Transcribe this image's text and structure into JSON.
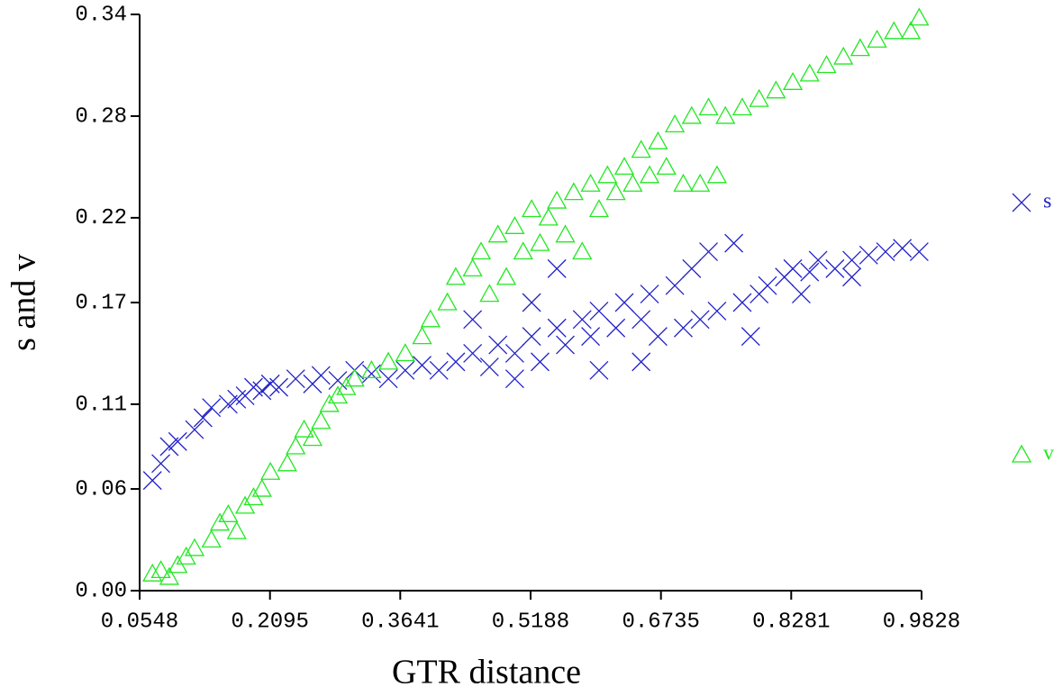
{
  "chart_data": {
    "type": "scatter",
    "x_label": "GTR distance",
    "y_label": "s and v",
    "xlim": [
      0.0548,
      0.9828
    ],
    "xticks": [
      0.0548,
      0.2095,
      0.3641,
      0.5188,
      0.6735,
      0.8281,
      0.9828
    ],
    "ylim": [
      0,
      0.34
    ],
    "yticks": [
      {
        "value": 0,
        "label": "0.00"
      },
      0.06,
      0.11,
      0.17,
      0.22,
      0.28,
      0.34
    ],
    "legend": "right",
    "series": [
      {
        "name": "s",
        "color": "#2222c8",
        "marker": "x",
        "x": [
          0.07,
          0.08,
          0.09,
          0.1,
          0.12,
          0.13,
          0.14,
          0.16,
          0.17,
          0.18,
          0.19,
          0.2,
          0.21,
          0.22,
          0.24,
          0.26,
          0.27,
          0.29,
          0.31,
          0.33,
          0.35,
          0.37,
          0.39,
          0.41,
          0.43,
          0.45,
          0.47,
          0.48,
          0.5,
          0.52,
          0.53,
          0.55,
          0.56,
          0.58,
          0.59,
          0.6,
          0.62,
          0.63,
          0.65,
          0.66,
          0.67,
          0.69,
          0.7,
          0.71,
          0.72,
          0.73,
          0.74,
          0.76,
          0.77,
          0.79,
          0.8,
          0.82,
          0.83,
          0.85,
          0.86,
          0.88,
          0.9,
          0.92,
          0.94,
          0.96,
          0.98,
          0.5,
          0.6,
          0.55,
          0.52,
          0.45,
          0.65,
          0.78,
          0.84,
          0.9
        ],
        "values": [
          0.065,
          0.075,
          0.085,
          0.088,
          0.095,
          0.102,
          0.108,
          0.11,
          0.113,
          0.115,
          0.12,
          0.118,
          0.122,
          0.12,
          0.125,
          0.122,
          0.127,
          0.124,
          0.13,
          0.128,
          0.125,
          0.13,
          0.133,
          0.13,
          0.135,
          0.14,
          0.132,
          0.145,
          0.14,
          0.15,
          0.135,
          0.155,
          0.145,
          0.16,
          0.15,
          0.165,
          0.155,
          0.17,
          0.16,
          0.175,
          0.15,
          0.18,
          0.155,
          0.19,
          0.16,
          0.2,
          0.165,
          0.205,
          0.17,
          0.175,
          0.18,
          0.185,
          0.19,
          0.188,
          0.195,
          0.19,
          0.195,
          0.198,
          0.2,
          0.202,
          0.2,
          0.125,
          0.13,
          0.19,
          0.17,
          0.16,
          0.135,
          0.15,
          0.175,
          0.185
        ]
      },
      {
        "name": "v",
        "color": "#22e822",
        "marker": "triangle",
        "x": [
          0.07,
          0.08,
          0.09,
          0.1,
          0.11,
          0.12,
          0.14,
          0.15,
          0.16,
          0.17,
          0.18,
          0.19,
          0.2,
          0.21,
          0.23,
          0.24,
          0.25,
          0.26,
          0.27,
          0.28,
          0.29,
          0.3,
          0.31,
          0.33,
          0.35,
          0.37,
          0.39,
          0.4,
          0.42,
          0.43,
          0.45,
          0.46,
          0.47,
          0.48,
          0.49,
          0.5,
          0.51,
          0.52,
          0.53,
          0.54,
          0.55,
          0.56,
          0.57,
          0.58,
          0.59,
          0.6,
          0.61,
          0.62,
          0.63,
          0.64,
          0.65,
          0.66,
          0.67,
          0.68,
          0.69,
          0.7,
          0.71,
          0.72,
          0.73,
          0.74,
          0.75,
          0.77,
          0.79,
          0.81,
          0.83,
          0.85,
          0.87,
          0.89,
          0.91,
          0.93,
          0.95,
          0.97,
          0.98
        ],
        "values": [
          0.01,
          0.012,
          0.008,
          0.015,
          0.02,
          0.025,
          0.03,
          0.04,
          0.045,
          0.035,
          0.05,
          0.055,
          0.06,
          0.07,
          0.075,
          0.085,
          0.095,
          0.09,
          0.1,
          0.11,
          0.115,
          0.12,
          0.125,
          0.13,
          0.135,
          0.14,
          0.15,
          0.16,
          0.17,
          0.185,
          0.19,
          0.2,
          0.175,
          0.21,
          0.185,
          0.215,
          0.2,
          0.225,
          0.205,
          0.22,
          0.23,
          0.21,
          0.235,
          0.2,
          0.24,
          0.225,
          0.245,
          0.235,
          0.25,
          0.24,
          0.26,
          0.245,
          0.265,
          0.25,
          0.275,
          0.24,
          0.28,
          0.24,
          0.285,
          0.245,
          0.28,
          0.285,
          0.29,
          0.295,
          0.3,
          0.305,
          0.31,
          0.315,
          0.32,
          0.325,
          0.33,
          0.33,
          0.338
        ]
      }
    ]
  }
}
